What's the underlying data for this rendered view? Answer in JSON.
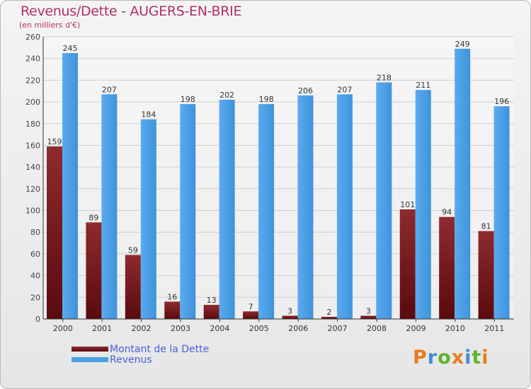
{
  "colors": {
    "dette": "#7a1c1e",
    "revenus": "#4b9fe0",
    "title": "#b0306a",
    "legend_text": "#4a63d8"
  },
  "chart_data": {
    "type": "bar",
    "title": "Revenus/Dette - AUGERS-EN-BRIE",
    "subtitle": "(en milliers d'€)",
    "categories": [
      "2000",
      "2001",
      "2002",
      "2003",
      "2004",
      "2005",
      "2006",
      "2007",
      "2008",
      "2009",
      "2010",
      "2011"
    ],
    "series": [
      {
        "name": "Montant de la Dette",
        "values": [
          159,
          89,
          59,
          16,
          13,
          7,
          3,
          2,
          3,
          101,
          94,
          81
        ]
      },
      {
        "name": "Revenus",
        "values": [
          245,
          207,
          184,
          198,
          202,
          198,
          206,
          207,
          218,
          211,
          249,
          196
        ]
      }
    ],
    "ylim": [
      0,
      260
    ],
    "yticks": [
      0,
      20,
      40,
      60,
      80,
      100,
      120,
      140,
      160,
      180,
      200,
      220,
      240,
      260
    ],
    "grid": true,
    "legend_position": "bottom-left"
  },
  "logo": {
    "letters": [
      "P",
      "r",
      "o",
      "x",
      "i",
      "t",
      "i"
    ],
    "colors": [
      "#e87d1e",
      "#3a8fd8",
      "#63b22f",
      "#e87d1e",
      "#3a8fd8",
      "#63b22f",
      "#e87d1e"
    ]
  }
}
